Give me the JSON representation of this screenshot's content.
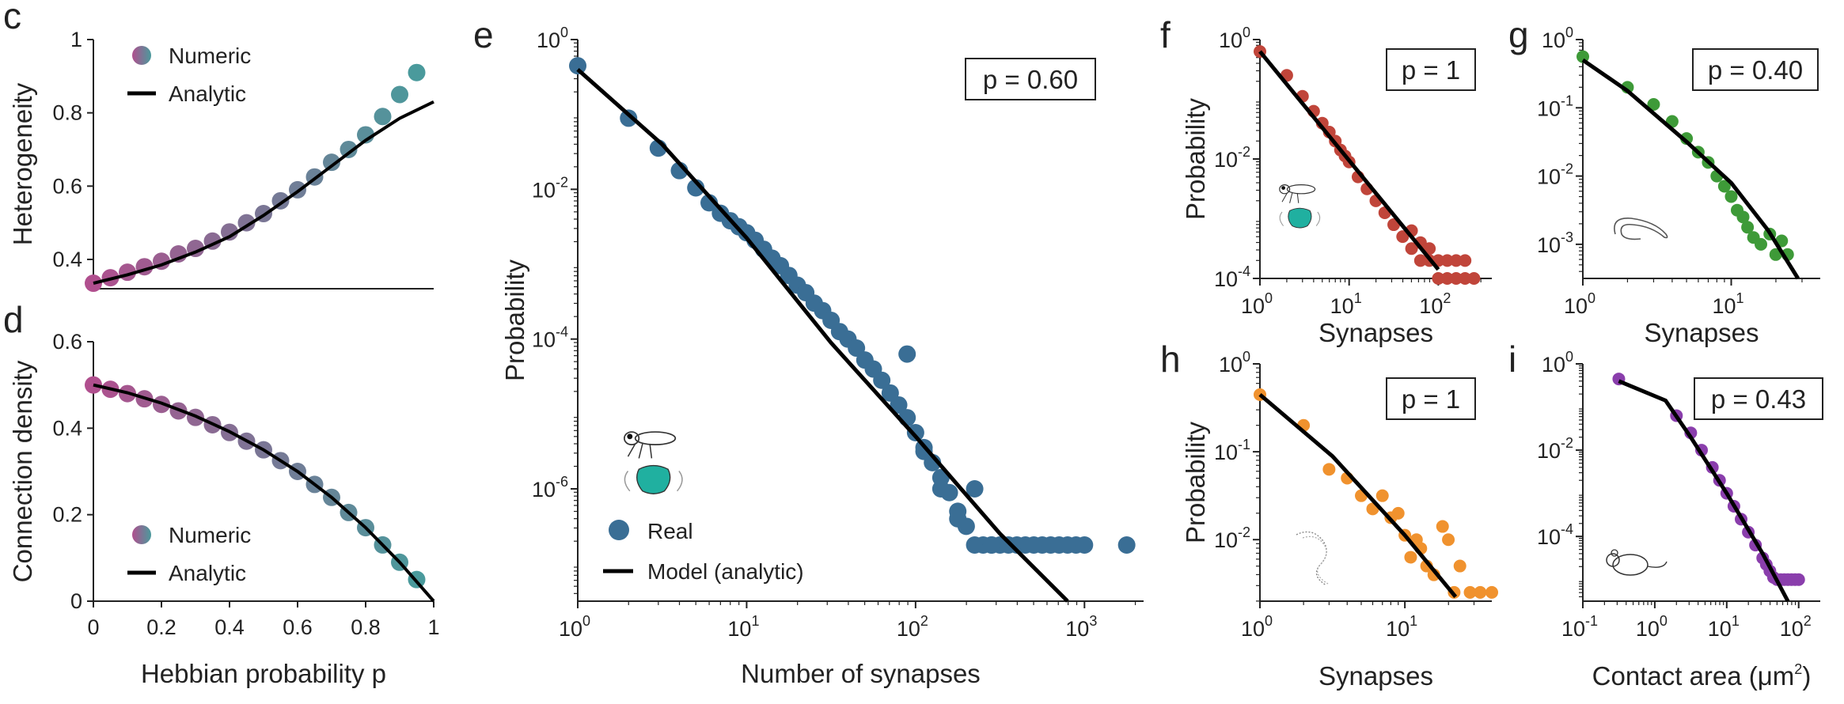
{
  "panels": {
    "c": {
      "label": "c",
      "type": "scatter+line",
      "ylabel": "Heterogeneity",
      "xlabel": "",
      "xlim": [
        0,
        1
      ],
      "ylim": [
        0.32,
        1.0
      ],
      "xticks": [],
      "yticks": [
        "0.4",
        "0.6",
        "0.8",
        "1"
      ],
      "legend": [
        "Numeric",
        "Analytic"
      ],
      "numeric": {
        "x": [
          0,
          0.05,
          0.1,
          0.15,
          0.2,
          0.25,
          0.3,
          0.35,
          0.4,
          0.45,
          0.5,
          0.55,
          0.6,
          0.65,
          0.7,
          0.75,
          0.8,
          0.85,
          0.9,
          0.95
        ],
        "y": [
          0.335,
          0.35,
          0.365,
          0.38,
          0.395,
          0.415,
          0.43,
          0.45,
          0.475,
          0.5,
          0.525,
          0.56,
          0.59,
          0.625,
          0.665,
          0.7,
          0.74,
          0.79,
          0.85,
          0.91
        ]
      },
      "analytic": {
        "x": [
          0,
          0.1,
          0.2,
          0.3,
          0.4,
          0.5,
          0.6,
          0.7,
          0.8,
          0.9,
          1.0
        ],
        "y": [
          0.335,
          0.358,
          0.385,
          0.42,
          0.462,
          0.52,
          0.585,
          0.655,
          0.725,
          0.785,
          0.83
        ]
      }
    },
    "d": {
      "label": "d",
      "type": "scatter+line",
      "ylabel": "Connection density",
      "xlabel": "Hebbian probability p",
      "xlim": [
        0,
        1
      ],
      "ylim": [
        0,
        0.6
      ],
      "xticks": [
        "0",
        "0.2",
        "0.4",
        "0.6",
        "0.8",
        "1"
      ],
      "yticks": [
        "0",
        "0.2",
        "0.4",
        "0.6"
      ],
      "legend": [
        "Numeric",
        "Analytic"
      ],
      "numeric": {
        "x": [
          0,
          0.05,
          0.1,
          0.15,
          0.2,
          0.25,
          0.3,
          0.35,
          0.4,
          0.45,
          0.5,
          0.55,
          0.6,
          0.65,
          0.7,
          0.75,
          0.8,
          0.85,
          0.9,
          0.95
        ],
        "y": [
          0.5,
          0.49,
          0.48,
          0.468,
          0.455,
          0.44,
          0.425,
          0.408,
          0.39,
          0.37,
          0.35,
          0.325,
          0.3,
          0.27,
          0.24,
          0.205,
          0.17,
          0.13,
          0.09,
          0.05
        ]
      },
      "analytic": {
        "x": [
          0,
          0.1,
          0.2,
          0.3,
          0.4,
          0.5,
          0.6,
          0.7,
          0.8,
          0.9,
          1.0
        ],
        "y": [
          0.5,
          0.482,
          0.458,
          0.428,
          0.392,
          0.35,
          0.3,
          0.24,
          0.17,
          0.09,
          0.0
        ]
      }
    },
    "e": {
      "label": "e",
      "type": "loglog",
      "ylabel": "Probability",
      "xlabel": "Number of synapses",
      "xlim": [
        0,
        3.35
      ],
      "ylim": [
        -7.5,
        0
      ],
      "xticks": [
        {
          "b": "10",
          "e": "0",
          "v": 0
        },
        {
          "b": "10",
          "e": "1",
          "v": 1
        },
        {
          "b": "10",
          "e": "2",
          "v": 2
        },
        {
          "b": "10",
          "e": "3",
          "v": 3
        }
      ],
      "yticks": [
        {
          "b": "10",
          "e": "0",
          "v": 0
        },
        {
          "b": "10",
          "e": "-2",
          "v": -2
        },
        {
          "b": "10",
          "e": "-4",
          "v": -4
        },
        {
          "b": "10",
          "e": "-6",
          "v": -6
        }
      ],
      "pvalue": "p = 0.60",
      "legend": [
        "Real",
        "Model (analytic)"
      ],
      "real_log10": {
        "x": [
          0,
          0.301,
          0.477,
          0.602,
          0.699,
          0.778,
          0.845,
          0.903,
          0.954,
          1.0,
          1.05,
          1.1,
          1.15,
          1.2,
          1.25,
          1.3,
          1.35,
          1.4,
          1.45,
          1.5,
          1.55,
          1.6,
          1.65,
          1.7,
          1.75,
          1.8,
          1.85,
          1.9,
          1.95,
          2.0,
          2.05,
          2.1,
          2.15,
          2.2,
          2.25,
          2.3,
          2.35,
          2.4,
          2.45,
          2.5,
          2.55,
          2.6,
          2.65,
          2.7,
          2.75,
          2.8,
          2.85,
          2.9,
          2.95,
          3.0,
          1.95,
          2.05,
          2.15,
          2.25,
          2.35,
          2.45,
          3.25
        ],
        "y": [
          -0.35,
          -1.05,
          -1.45,
          -1.75,
          -1.98,
          -2.18,
          -2.32,
          -2.42,
          -2.5,
          -2.58,
          -2.68,
          -2.8,
          -2.92,
          -3.02,
          -3.15,
          -3.28,
          -3.38,
          -3.52,
          -3.62,
          -3.75,
          -3.9,
          -4.0,
          -4.12,
          -4.28,
          -4.4,
          -4.55,
          -4.72,
          -4.88,
          -5.05,
          -5.25,
          -5.45,
          -5.65,
          -5.85,
          -6.05,
          -6.3,
          -6.5,
          -6.75,
          -6.75,
          -6.75,
          -6.75,
          -6.75,
          -6.75,
          -6.75,
          -6.75,
          -6.75,
          -6.75,
          -6.75,
          -6.75,
          -6.75,
          -6.75,
          -4.2,
          -5.5,
          -6.0,
          -6.4,
          -6.0,
          -6.75,
          -6.75
        ]
      },
      "model_log10": {
        "x": [
          0,
          0.5,
          1.0,
          1.5,
          2.0,
          2.5,
          2.9
        ],
        "y": [
          -0.4,
          -1.4,
          -2.65,
          -4.05,
          -5.3,
          -6.6,
          -7.5
        ]
      }
    },
    "f": {
      "label": "f",
      "type": "loglog",
      "ylabel": "Probability",
      "xlabel": "Synapses",
      "xlim": [
        0,
        2.6
      ],
      "ylim": [
        -4,
        0
      ],
      "xticks": [
        {
          "b": "10",
          "e": "0",
          "v": 0
        },
        {
          "b": "10",
          "e": "1",
          "v": 1
        },
        {
          "b": "10",
          "e": "2",
          "v": 2
        }
      ],
      "yticks": [
        {
          "b": "10",
          "e": "0",
          "v": 0
        },
        {
          "b": "10",
          "e": "-2",
          "v": -2
        },
        {
          "b": "10",
          "e": "-4",
          "v": -4
        }
      ],
      "pvalue": "p = 1",
      "real_log10": {
        "x": [
          0,
          0.301,
          0.477,
          0.602,
          0.699,
          0.778,
          0.845,
          0.903,
          0.954,
          1.0,
          1.1,
          1.2,
          1.3,
          1.4,
          1.5,
          1.6,
          1.7,
          1.8,
          1.9,
          2.0,
          2.1,
          2.2,
          2.3,
          1.7,
          1.8,
          1.9,
          2.0,
          2.1,
          2.2,
          2.3,
          2.4
        ],
        "y": [
          -0.2,
          -0.6,
          -0.95,
          -1.2,
          -1.4,
          -1.55,
          -1.7,
          -1.85,
          -1.95,
          -2.05,
          -2.3,
          -2.5,
          -2.7,
          -2.9,
          -3.1,
          -3.3,
          -3.5,
          -3.7,
          -3.7,
          -3.7,
          -3.7,
          -3.7,
          -3.7,
          -3.2,
          -3.4,
          -3.5,
          -4.0,
          -4.0,
          -4.0,
          -4.0,
          -4.0
        ]
      },
      "model_log10": {
        "x": [
          0,
          2.0
        ],
        "y": [
          -0.2,
          -3.85
        ]
      }
    },
    "g": {
      "label": "g",
      "type": "loglog",
      "ylabel": "",
      "xlabel": "Synapses",
      "xlim": [
        0,
        1.6
      ],
      "ylim": [
        -3.5,
        0
      ],
      "xticks": [
        {
          "b": "10",
          "e": "0",
          "v": 0
        },
        {
          "b": "10",
          "e": "1",
          "v": 1
        }
      ],
      "yticks": [
        {
          "b": "10",
          "e": "0",
          "v": 0
        },
        {
          "b": "10",
          "e": "-1",
          "v": -1
        },
        {
          "b": "10",
          "e": "-2",
          "v": -2
        },
        {
          "b": "10",
          "e": "-3",
          "v": -3
        }
      ],
      "pvalue": "p = 0.40",
      "real_log10": {
        "x": [
          0,
          0.301,
          0.477,
          0.602,
          0.699,
          0.778,
          0.845,
          0.903,
          0.954,
          1.0,
          1.04,
          1.08,
          1.11,
          1.15,
          1.2,
          1.26,
          1.3,
          1.34,
          1.38
        ],
        "y": [
          -0.25,
          -0.7,
          -0.95,
          -1.2,
          -1.45,
          -1.65,
          -1.8,
          -2.0,
          -2.15,
          -2.3,
          -2.5,
          -2.6,
          -2.75,
          -2.9,
          -3.0,
          -2.85,
          -3.15,
          -2.95,
          -3.15
        ]
      },
      "model_log10": {
        "x": [
          0,
          0.3,
          0.7,
          1.0,
          1.25,
          1.45
        ],
        "y": [
          -0.3,
          -0.75,
          -1.5,
          -2.1,
          -2.8,
          -3.5
        ]
      }
    },
    "h": {
      "label": "h",
      "type": "loglog",
      "ylabel": "Probability",
      "xlabel": "Synapses",
      "xlim": [
        0,
        1.6
      ],
      "ylim": [
        -2.7,
        0
      ],
      "xticks": [
        {
          "b": "10",
          "e": "0",
          "v": 0
        },
        {
          "b": "10",
          "e": "1",
          "v": 1
        }
      ],
      "yticks": [
        {
          "b": "10",
          "e": "0",
          "v": 0
        },
        {
          "b": "10",
          "e": "-1",
          "v": -1
        },
        {
          "b": "10",
          "e": "-2",
          "v": -2
        }
      ],
      "pvalue": "p = 1",
      "real_log10": {
        "x": [
          0,
          0.301,
          0.477,
          0.602,
          0.699,
          0.778,
          0.845,
          0.903,
          0.954,
          1.0,
          1.04,
          1.08,
          1.11,
          1.15,
          1.2,
          1.26,
          1.3,
          1.34,
          1.38,
          1.45,
          1.52,
          1.6
        ],
        "y": [
          -0.35,
          -0.7,
          -1.2,
          -1.3,
          -1.5,
          -1.65,
          -1.5,
          -1.75,
          -1.7,
          -1.95,
          -2.2,
          -2.0,
          -2.1,
          -2.3,
          -2.4,
          -1.85,
          -2.0,
          -2.6,
          -2.3,
          -2.6,
          -2.6,
          -2.6
        ]
      },
      "model_log10": {
        "x": [
          0,
          0.5,
          1.0,
          1.35
        ],
        "y": [
          -0.35,
          -1.05,
          -1.95,
          -2.65
        ]
      }
    },
    "i": {
      "label": "i",
      "type": "loglog",
      "ylabel": "",
      "xlabel": "Contact area",
      "xlabel_unit": "(μm",
      "xlabel_unit_sup": "2",
      "xlabel_unit_close": ")",
      "xlim": [
        -1,
        2.3
      ],
      "ylim": [
        -5.5,
        0
      ],
      "xticks": [
        {
          "b": "10",
          "e": "-1",
          "v": -1
        },
        {
          "b": "10",
          "e": "0",
          "v": 0
        },
        {
          "b": "10",
          "e": "1",
          "v": 1
        },
        {
          "b": "10",
          "e": "2",
          "v": 2
        }
      ],
      "yticks": [
        {
          "b": "10",
          "e": "0",
          "v": 0
        },
        {
          "b": "10",
          "e": "-2",
          "v": -2
        },
        {
          "b": "10",
          "e": "-4",
          "v": -4
        }
      ],
      "pvalue": "p = 0.43",
      "real_log10": {
        "x": [
          -0.5,
          0.301,
          0.5,
          0.65,
          0.8,
          0.9,
          1.0,
          1.1,
          1.2,
          1.3,
          1.4,
          1.5,
          1.55,
          1.6,
          1.65,
          1.7,
          1.75,
          1.8,
          1.85,
          1.9,
          1.95,
          2.0
        ],
        "y": [
          -0.35,
          -1.2,
          -1.6,
          -2.0,
          -2.4,
          -2.7,
          -3.0,
          -3.3,
          -3.6,
          -3.9,
          -4.2,
          -4.5,
          -4.65,
          -4.8,
          -4.95,
          -5.0,
          -5.0,
          -5.0,
          -5.0,
          -5.0,
          -5.0,
          -5.0
        ]
      },
      "model_log10": {
        "x": [
          -0.5,
          0.15,
          0.5,
          1.0,
          1.5,
          1.85
        ],
        "y": [
          -0.4,
          -0.85,
          -1.7,
          -3.0,
          -4.4,
          -5.5
        ]
      }
    }
  },
  "colors": {
    "numeric_start": "#b04f8e",
    "numeric_end": "#4a9a9c",
    "e_points": "#3a6e95",
    "f_points": "#c0453a",
    "g_points": "#3e9a38",
    "h_points": "#f0922e",
    "i_points": "#8a3eac",
    "line": "#000000",
    "axis": "#222222",
    "fly_body": "#20b0a0"
  },
  "icons": [
    "fly-brain-icon",
    "worm-icon",
    "larva-icon",
    "mouse-icon"
  ]
}
